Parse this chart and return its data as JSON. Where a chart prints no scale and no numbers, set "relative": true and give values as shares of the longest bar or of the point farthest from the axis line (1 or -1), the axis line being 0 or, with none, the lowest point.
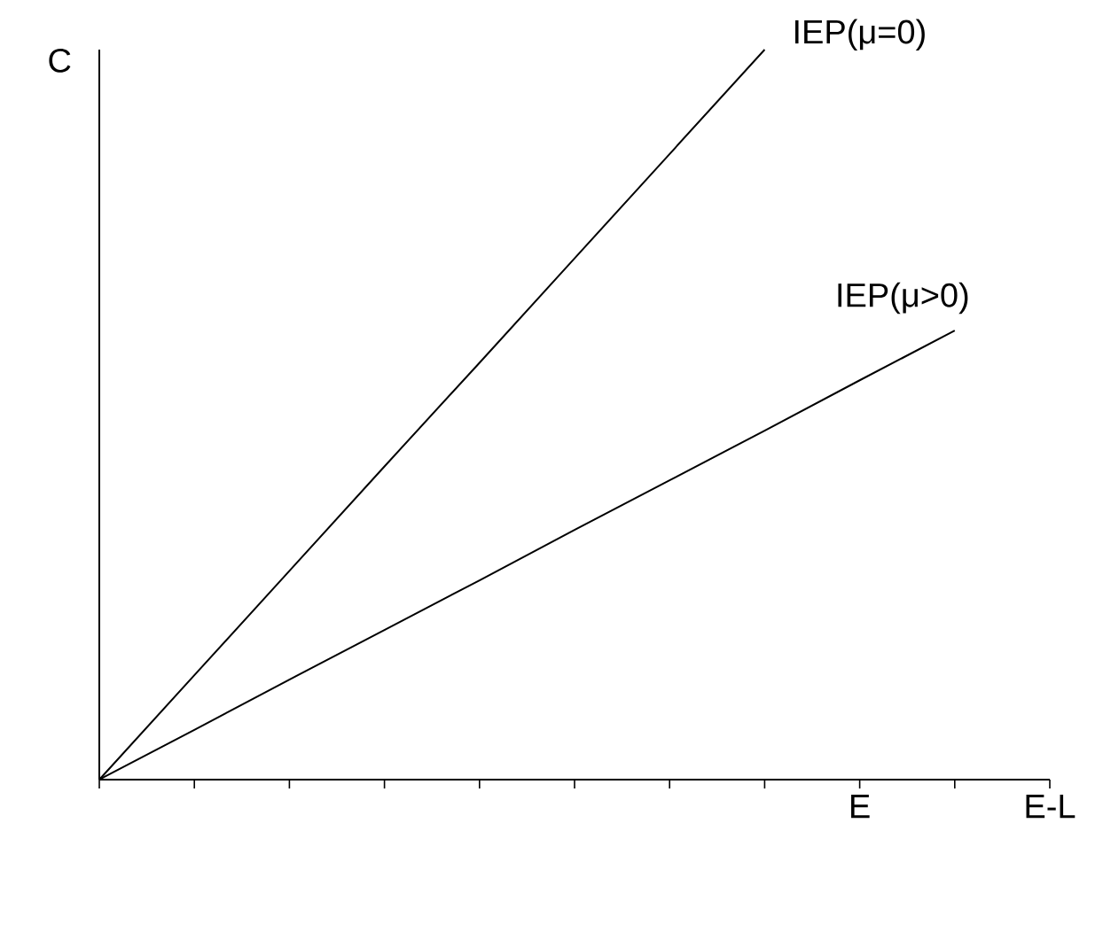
{
  "chart_data": {
    "type": "line",
    "relative": true,
    "ylabel": "C",
    "tick_labels": "x",
    "categories": [
      null,
      null,
      null,
      null,
      null,
      null,
      null,
      null,
      "E",
      null,
      "E-L"
    ],
    "series": [
      {
        "name": "IEP(μ=0)",
        "color": "#000000",
        "values": [
          0,
          0.143,
          0.286,
          0.429,
          0.571,
          0.714,
          0.857,
          1,
          null,
          null,
          null
        ]
      },
      {
        "name": "IEP(μ>0)",
        "color": "#000000",
        "values": [
          0,
          0.068,
          0.137,
          0.205,
          0.273,
          0.342,
          0.41,
          0.478,
          0.547,
          0.615,
          null
        ]
      }
    ]
  }
}
